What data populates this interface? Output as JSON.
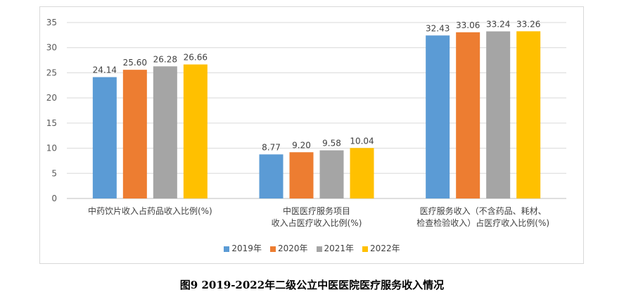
{
  "caption": "图9 2019-2022年二级公立中医医院医疗服务收入情况",
  "chart_data": {
    "type": "bar",
    "categories": [
      [
        "中药饮片收入占药品收入比例(%)"
      ],
      [
        "中医医疗服务项目",
        "收入占医疗收入比例(%)"
      ],
      [
        "医疗服务收入（不含药品、耗材、",
        "检查检验收入）占医疗收入比例(%)"
      ]
    ],
    "series": [
      {
        "name": "2019年",
        "color": "#5B9BD5",
        "values": [
          24.14,
          8.77,
          32.43
        ],
        "labels": [
          "24.14",
          "8.77",
          "32.43"
        ]
      },
      {
        "name": "2020年",
        "color": "#ED7D31",
        "values": [
          25.6,
          9.2,
          33.06
        ],
        "labels": [
          "25.60",
          "9.20",
          "33.06"
        ]
      },
      {
        "name": "2021年",
        "color": "#A5A5A5",
        "values": [
          26.28,
          9.58,
          33.24
        ],
        "labels": [
          "26.28",
          "9.58",
          "33.24"
        ]
      },
      {
        "name": "2022年",
        "color": "#FFC000",
        "values": [
          26.66,
          10.04,
          33.26
        ],
        "labels": [
          "26.66",
          "10.04",
          "33.26"
        ]
      }
    ],
    "ylim": [
      0,
      35
    ],
    "yticks": [
      "0",
      "5",
      "10",
      "15",
      "20",
      "25",
      "30",
      "35"
    ],
    "grid": true,
    "legend": "bottom"
  }
}
